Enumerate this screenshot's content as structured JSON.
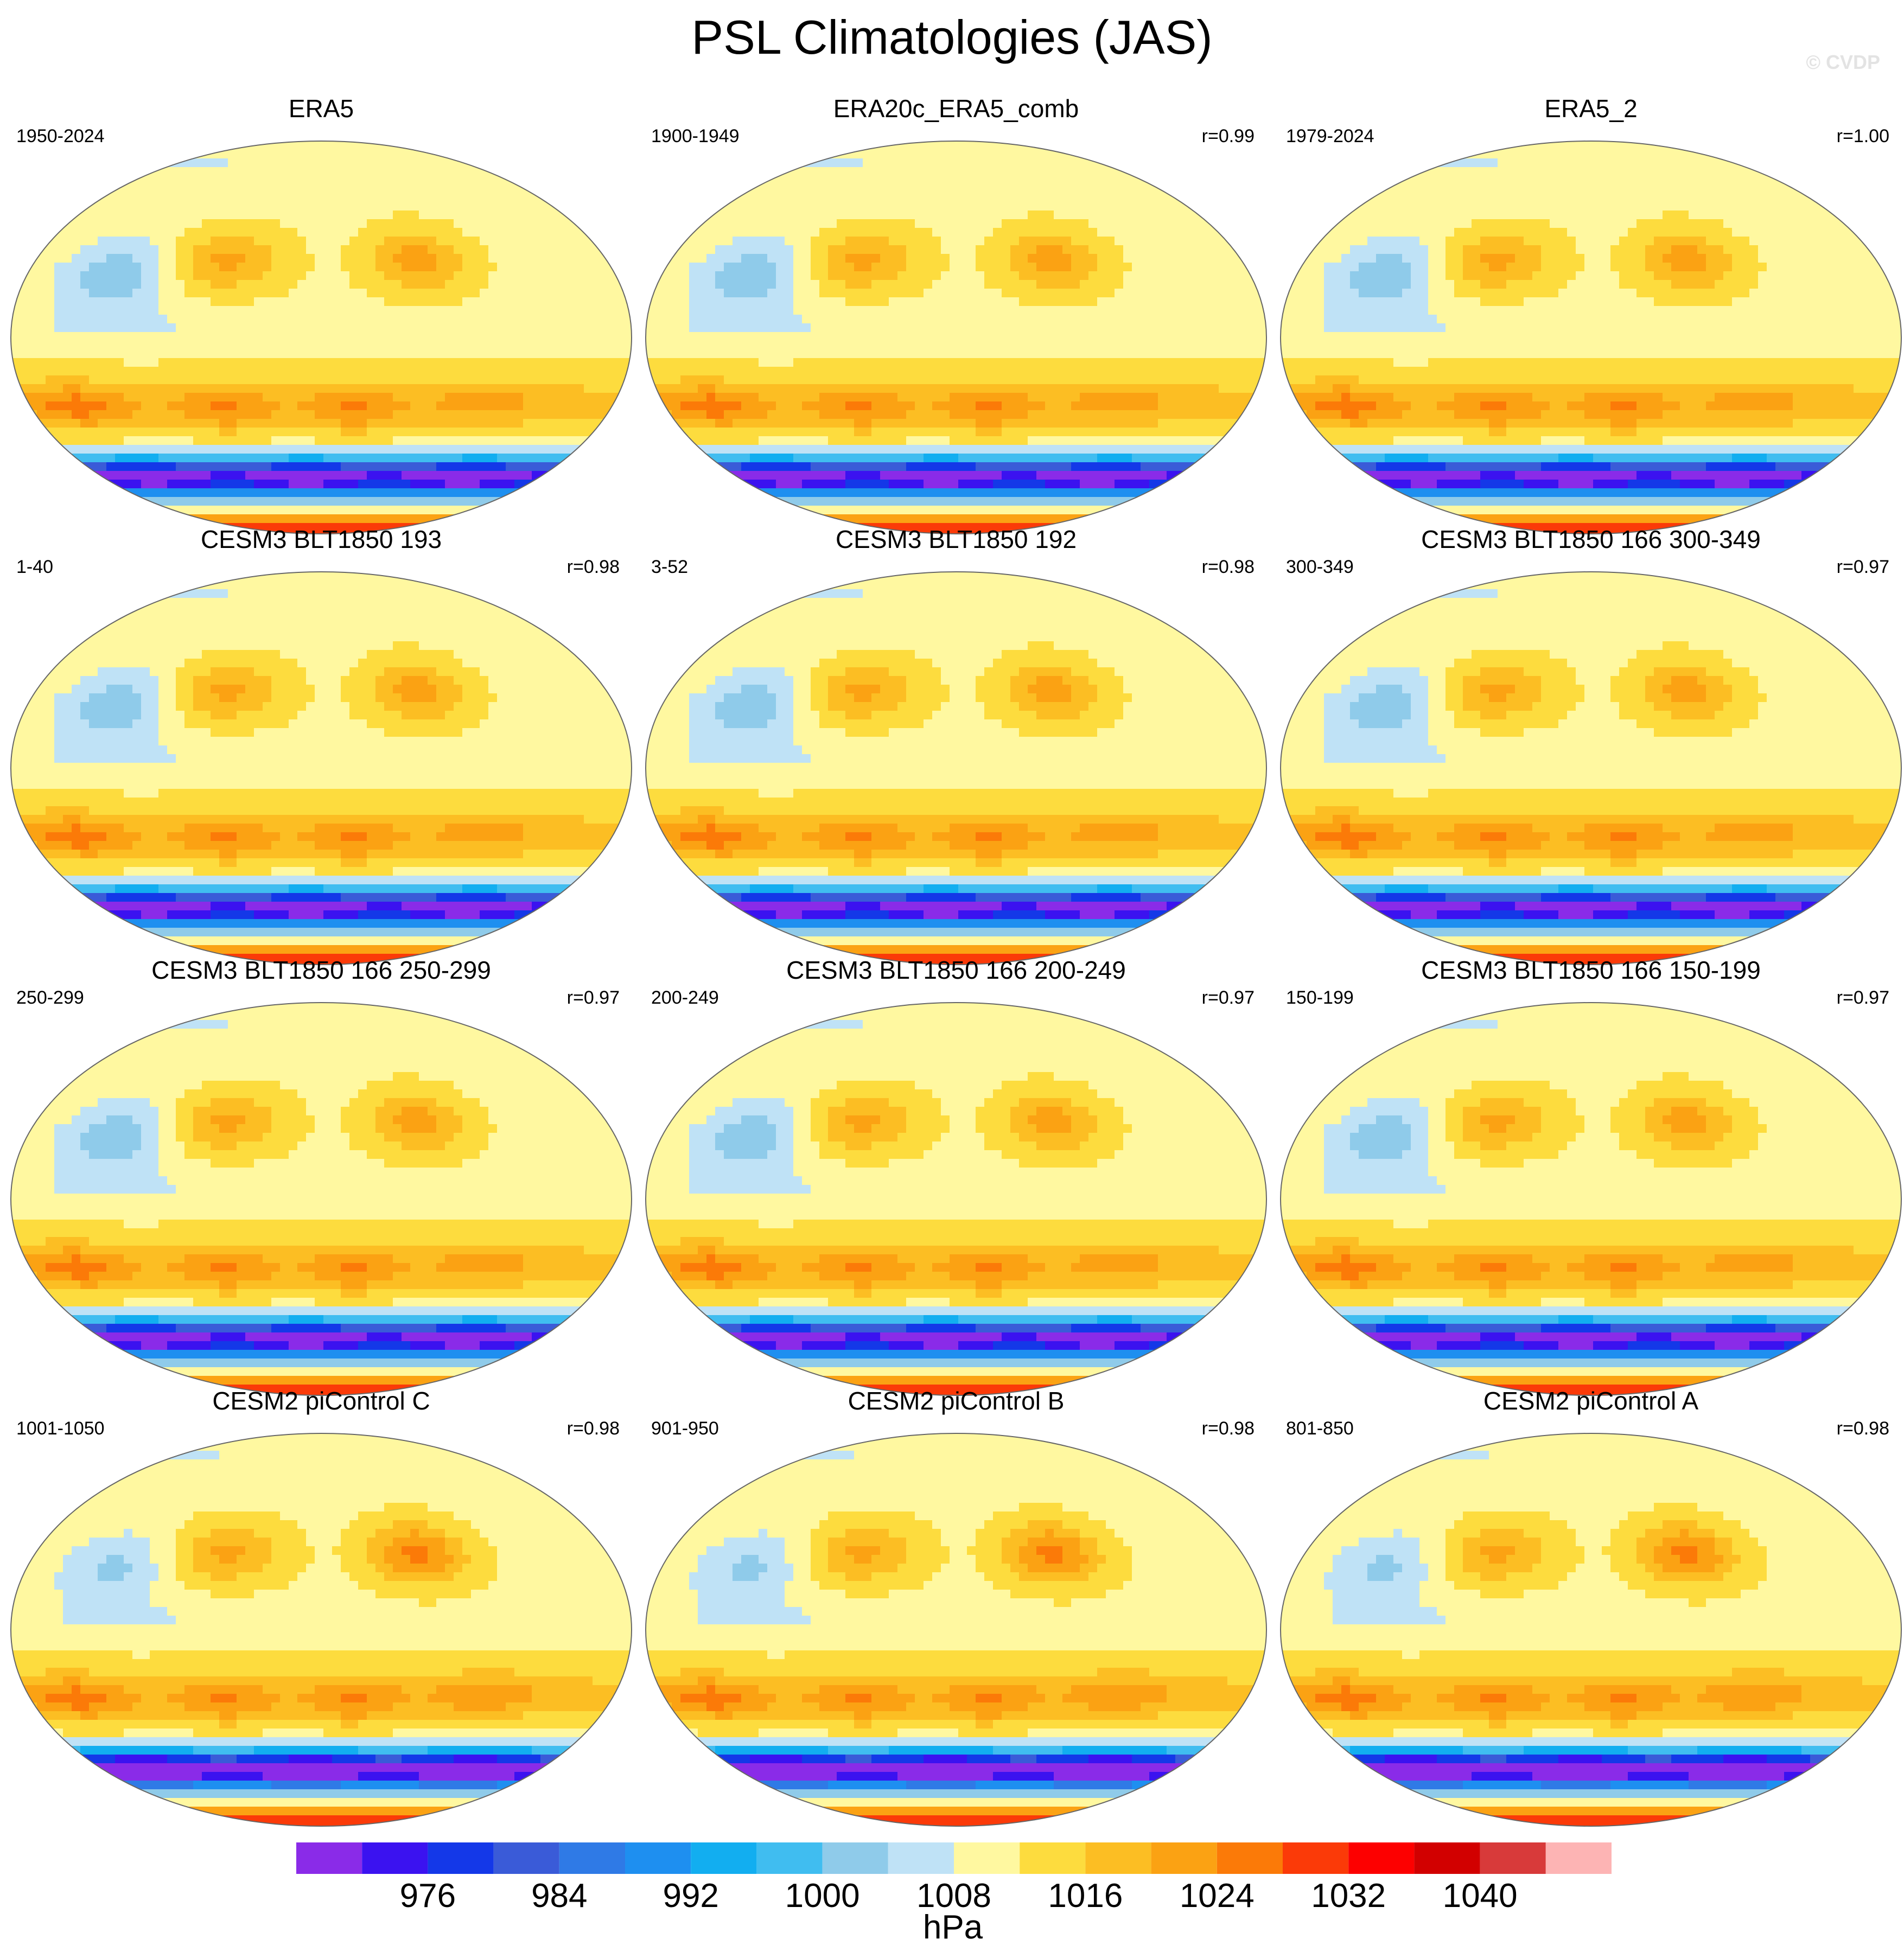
{
  "title": "PSL Climatologies (JAS)",
  "watermark": "© CVDP",
  "panels": [
    {
      "title": "ERA5",
      "period": "1950-2024",
      "corr": "",
      "variant": "obs"
    },
    {
      "title": "ERA20c_ERA5_comb",
      "period": "1900-1949",
      "corr": "r=0.99",
      "variant": "obs"
    },
    {
      "title": "ERA5_2",
      "period": "1979-2024",
      "corr": "r=1.00",
      "variant": "obs"
    },
    {
      "title": "CESM3 BLT1850 193",
      "period": "1-40",
      "corr": "r=0.98",
      "variant": "cesm3"
    },
    {
      "title": "CESM3 BLT1850 192",
      "period": "3-52",
      "corr": "r=0.98",
      "variant": "cesm3"
    },
    {
      "title": "CESM3 BLT1850 166 300-349",
      "period": "300-349",
      "corr": "r=0.97",
      "variant": "cesm3"
    },
    {
      "title": "CESM3 BLT1850 166 250-299",
      "period": "250-299",
      "corr": "r=0.97",
      "variant": "cesm3"
    },
    {
      "title": "CESM3 BLT1850 166 200-249",
      "period": "200-249",
      "corr": "r=0.97",
      "variant": "cesm3"
    },
    {
      "title": "CESM3 BLT1850 166 150-199",
      "period": "150-199",
      "corr": "r=0.97",
      "variant": "cesm3"
    },
    {
      "title": "CESM2 piControl C",
      "period": "1001-1050",
      "corr": "r=0.98",
      "variant": "cesm2"
    },
    {
      "title": "CESM2 piControl B",
      "period": "901-950",
      "corr": "r=0.98",
      "variant": "cesm2"
    },
    {
      "title": "CESM2 piControl A",
      "period": "801-850",
      "corr": "r=0.98",
      "variant": "cesm2"
    }
  ],
  "colorbar": {
    "units": "hPa",
    "colors": [
      "#8a2be8",
      "#3b12f0",
      "#1438e8",
      "#3a5bd8",
      "#2f7ae6",
      "#1e8ff0",
      "#12aef0",
      "#40bdf0",
      "#8fcbea",
      "#bfe2f6",
      "#fff8a0",
      "#fddc3e",
      "#fcbe23",
      "#fba213",
      "#fb7a08",
      "#fb3a08",
      "#fd0000",
      "#d20000",
      "#d83a3a",
      "#fdb4b4"
    ],
    "tick_labels": [
      "976",
      "984",
      "992",
      "1000",
      "1008",
      "1016",
      "1024",
      "1032",
      "1040"
    ],
    "tick_boundary_index": [
      2,
      4,
      6,
      8,
      10,
      12,
      14,
      16,
      18
    ]
  },
  "chart_data": {
    "type": "heatmap",
    "variable": "PSL",
    "season": "JAS",
    "units": "hPa",
    "contour_levels": [
      972,
      976,
      980,
      984,
      988,
      992,
      996,
      1000,
      1004,
      1008,
      1012,
      1016,
      1020,
      1024,
      1028,
      1032,
      1036,
      1040,
      1044
    ],
    "panels": [
      {
        "title": "ERA5",
        "period": "1950-2024",
        "r": null
      },
      {
        "title": "ERA20c_ERA5_comb",
        "period": "1900-1949",
        "r": 0.99
      },
      {
        "title": "ERA5_2",
        "period": "1979-2024",
        "r": 1.0
      },
      {
        "title": "CESM3 BLT1850 193",
        "period": "1-40",
        "r": 0.98
      },
      {
        "title": "CESM3 BLT1850 192",
        "period": "3-52",
        "r": 0.98
      },
      {
        "title": "CESM3 BLT1850 166 300-349",
        "period": "300-349",
        "r": 0.97
      },
      {
        "title": "CESM3 BLT1850 166 250-299",
        "period": "250-299",
        "r": 0.97
      },
      {
        "title": "CESM3 BLT1850 166 200-249",
        "period": "200-249",
        "r": 0.97
      },
      {
        "title": "CESM3 BLT1850 166 150-199",
        "period": "150-199",
        "r": 0.97
      },
      {
        "title": "CESM2 piControl C",
        "period": "1001-1050",
        "r": 0.98
      },
      {
        "title": "CESM2 piControl B",
        "period": "901-950",
        "r": 0.98
      },
      {
        "title": "CESM2 piControl A",
        "period": "801-850",
        "r": 0.98
      }
    ]
  }
}
